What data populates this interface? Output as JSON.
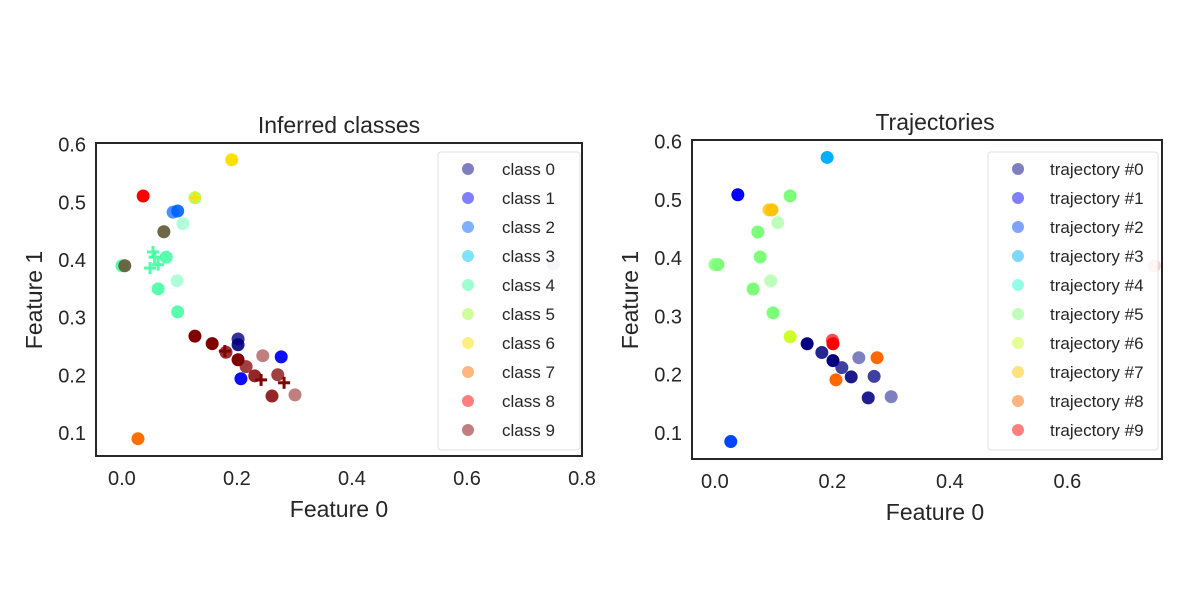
{
  "chart_data": [
    {
      "type": "scatter",
      "title": "Inferred classes",
      "xlabel": "Feature 0",
      "ylabel": "Feature 1",
      "xlim": [
        -0.045,
        0.8
      ],
      "ylim": [
        0.06,
        0.603
      ],
      "xticks": [
        "0.0",
        "0.2",
        "0.4",
        "0.6",
        "0.8"
      ],
      "xtick_values": [
        0,
        0.2,
        0.4,
        0.6,
        0.8
      ],
      "yticks": [
        "0.1",
        "0.2",
        "0.3",
        "0.4",
        "0.5",
        "0.6"
      ],
      "ytick_values": [
        0.1,
        0.2,
        0.3,
        0.4,
        0.5,
        0.6
      ],
      "grid": false,
      "legend_position": "top-right",
      "series": [
        {
          "name": "class 0",
          "color": "#000080",
          "points": [
            [
              0.202,
              0.263,
              0.8,
              "o"
            ],
            [
              0.202,
              0.253,
              0.9,
              "o"
            ],
            [
              0.75,
              0.393,
              0.2,
              "o"
            ]
          ]
        },
        {
          "name": "class 1",
          "color": "#0000ff",
          "points": [
            [
              0.277,
              0.232,
              0.95,
              "o"
            ],
            [
              0.207,
              0.194,
              0.95,
              "o"
            ]
          ]
        },
        {
          "name": "class 2",
          "color": "#0060ff",
          "points": [
            [
              0.089,
              0.483,
              0.7,
              "o"
            ],
            [
              0.097,
              0.485,
              0.9,
              "o"
            ]
          ]
        },
        {
          "name": "class 3",
          "color": "#00c8ff",
          "points": []
        },
        {
          "name": "class 4",
          "color": "#3dffa0",
          "points": [
            [
              0.106,
              0.463,
              0.4,
              "o"
            ],
            [
              0.077,
              0.405,
              0.85,
              "o"
            ],
            [
              0.0,
              0.39,
              0.85,
              "o"
            ],
            [
              0.096,
              0.364,
              0.4,
              "o"
            ],
            [
              0.063,
              0.35,
              0.85,
              "o"
            ],
            [
              0.097,
              0.31,
              0.85,
              "o"
            ],
            [
              0.073,
              0.449,
              0.85,
              "o"
            ],
            [
              0.005,
              0.39,
              0.85,
              "o"
            ],
            [
              0.054,
              0.414,
              0.9,
              "+"
            ],
            [
              0.057,
              0.405,
              0.9,
              "+"
            ],
            [
              0.063,
              0.392,
              0.9,
              "+"
            ],
            [
              0.049,
              0.386,
              0.9,
              "+"
            ]
          ]
        },
        {
          "name": "class 5",
          "color": "#a0ff3a",
          "points": [
            [
              0.127,
              0.508,
              0.8,
              "o"
            ]
          ]
        },
        {
          "name": "class 6",
          "color": "#ffe000",
          "points": [
            [
              0.191,
              0.574,
              1,
              "o"
            ],
            [
              0.127,
              0.508,
              1,
              "+"
            ]
          ]
        },
        {
          "name": "class 7",
          "color": "#ff7000",
          "points": [
            [
              0.028,
              0.09,
              1,
              "o"
            ]
          ]
        },
        {
          "name": "class 8",
          "color": "#ff0000",
          "points": [
            [
              0.037,
              0.511,
              1,
              "o"
            ]
          ]
        },
        {
          "name": "class 9",
          "color": "#800000",
          "points": [
            [
              0.073,
              0.449,
              0.6,
              "o"
            ],
            [
              0.005,
              0.39,
              0.6,
              "o"
            ],
            [
              0.127,
              0.268,
              1,
              "o"
            ],
            [
              0.157,
              0.255,
              1,
              "o"
            ],
            [
              0.181,
              0.24,
              0.8,
              "o"
            ],
            [
              0.202,
              0.227,
              1,
              "o"
            ],
            [
              0.216,
              0.215,
              0.75,
              "o"
            ],
            [
              0.245,
              0.234,
              0.5,
              "o"
            ],
            [
              0.231,
              0.199,
              0.85,
              "o"
            ],
            [
              0.271,
              0.201,
              0.75,
              "o"
            ],
            [
              0.261,
              0.164,
              0.85,
              "o"
            ],
            [
              0.301,
              0.166,
              0.5,
              "o"
            ],
            [
              0.179,
              0.242,
              1,
              "+"
            ],
            [
              0.242,
              0.192,
              1,
              "+"
            ],
            [
              0.282,
              0.187,
              1,
              "+"
            ]
          ]
        }
      ]
    },
    {
      "type": "scatter",
      "title": "Trajectories",
      "xlabel": "Feature 0",
      "ylabel": "Feature 1",
      "xlim": [
        -0.039,
        0.761
      ],
      "ylim": [
        0.055,
        0.603
      ],
      "xticks": [
        "0.0",
        "0.2",
        "0.4",
        "0.6"
      ],
      "xtick_values": [
        0,
        0.2,
        0.4,
        0.6
      ],
      "yticks": [
        "0.1",
        "0.2",
        "0.3",
        "0.4",
        "0.5",
        "0.6"
      ],
      "ytick_values": [
        0.1,
        0.2,
        0.3,
        0.4,
        0.5,
        0.6
      ],
      "grid": false,
      "legend_position": "top-right",
      "series": [
        {
          "name": "trajectory #0",
          "color": "#000080",
          "points": [
            [
              0.157,
              0.253,
              1,
              "o"
            ],
            [
              0.182,
              0.238,
              0.85,
              "o"
            ],
            [
              0.201,
              0.224,
              1,
              "o"
            ],
            [
              0.216,
              0.212,
              0.75,
              "o"
            ],
            [
              0.245,
              0.229,
              0.5,
              "o"
            ],
            [
              0.232,
              0.196,
              0.9,
              "o"
            ],
            [
              0.271,
              0.197,
              0.75,
              "o"
            ],
            [
              0.261,
              0.16,
              0.88,
              "o"
            ],
            [
              0.3,
              0.162,
              0.5,
              "o"
            ]
          ]
        },
        {
          "name": "trajectory #1",
          "color": "#0000ff",
          "points": [
            [
              0.039,
              0.509,
              1,
              "o"
            ]
          ]
        },
        {
          "name": "trajectory #2",
          "color": "#0044ff",
          "points": [
            [
              0.027,
              0.085,
              1,
              "o"
            ]
          ]
        },
        {
          "name": "trajectory #3",
          "color": "#00b0ff",
          "points": [
            [
              0.191,
              0.573,
              1,
              "o"
            ]
          ]
        },
        {
          "name": "trajectory #4",
          "color": "#29ffce",
          "points": []
        },
        {
          "name": "trajectory #5",
          "color": "#7dff7a",
          "points": [
            [
              0.128,
              0.507,
              1,
              "o"
            ],
            [
              0.107,
              0.461,
              0.5,
              "o"
            ],
            [
              0.073,
              0.445,
              1,
              "o"
            ],
            [
              0.077,
              0.402,
              1,
              "o"
            ],
            [
              0.005,
              0.389,
              1,
              "o"
            ],
            [
              0.0,
              0.389,
              0.8,
              "o"
            ],
            [
              0.095,
              0.361,
              0.5,
              "o"
            ],
            [
              0.065,
              0.347,
              1,
              "o"
            ],
            [
              0.099,
              0.306,
              1,
              "o"
            ]
          ]
        },
        {
          "name": "trajectory #6",
          "color": "#ceff29",
          "points": [
            [
              0.128,
              0.265,
              1,
              "o"
            ]
          ]
        },
        {
          "name": "trajectory #7",
          "color": "#ffc400",
          "points": [
            [
              0.092,
              0.483,
              0.8,
              "o"
            ],
            [
              0.097,
              0.483,
              1,
              "o"
            ]
          ]
        },
        {
          "name": "trajectory #8",
          "color": "#ff6800",
          "points": [
            [
              0.276,
              0.229,
              1,
              "o"
            ],
            [
              0.206,
              0.191,
              1,
              "o"
            ]
          ]
        },
        {
          "name": "trajectory #9",
          "color": "#ff0000",
          "points": [
            [
              0.2,
              0.259,
              0.7,
              "o"
            ],
            [
              0.201,
              0.253,
              1,
              "o"
            ],
            [
              0.748,
              0.387,
              0.2,
              "o"
            ]
          ]
        }
      ]
    }
  ]
}
